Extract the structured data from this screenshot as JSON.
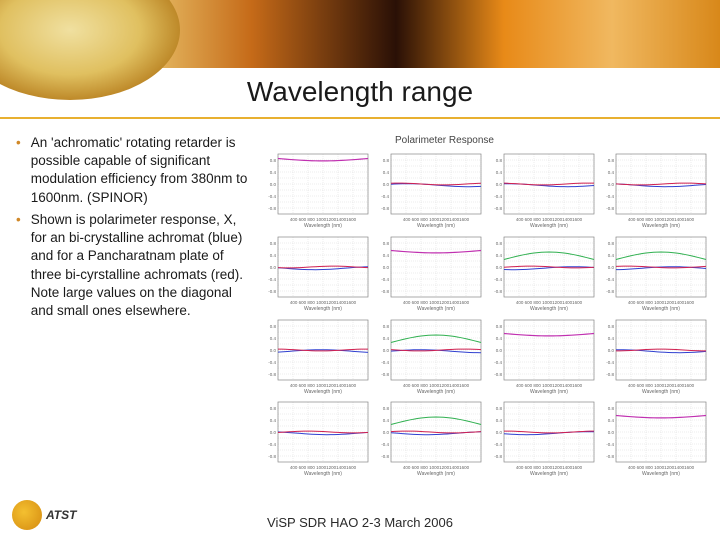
{
  "title": "Wavelength range",
  "bullets": [
    "An 'achromatic' rotating retarder is possible capable of significant modulation efficiency from 380nm to 1600nm. (SPINOR)",
    "Shown is polarimeter response, X, for an bi-crystalline achromat (blue) and for a Pancharatnam plate of three bi-cyrstalline achromats (red). Note large values on the diagonal and small ones elsewhere."
  ],
  "grid_title": "Polarimeter Response",
  "footer": "ViSP SDR HAO 2-3 March 2006",
  "logo_text": "ATST",
  "chart_style": {
    "axis_color": "#888888",
    "grid_color": "#d0d0d0",
    "text_color": "#666666",
    "blue_line": "#3040d0",
    "red_line": "#d02050",
    "magenta_line": "#c030b0",
    "green_line": "#30b050",
    "bg": "#ffffff",
    "xticks": [
      "400",
      "600",
      "800",
      "1000",
      "1200",
      "1400",
      "1600"
    ],
    "xlabel": "Wavelength (nm)",
    "yticks_full": [
      "-0.8",
      "-0.6",
      "-0.4",
      "-0.2",
      "0.0",
      "0.2",
      "0.4",
      "0.6",
      "0.8"
    ],
    "ylim": [
      -1,
      1
    ]
  },
  "charts": [
    {
      "diag": true,
      "mainVal": 0.85
    },
    {
      "diag": false
    },
    {
      "diag": false
    },
    {
      "diag": false
    },
    {
      "diag": false
    },
    {
      "diag": true,
      "mainVal": 0.55
    },
    {
      "diag": false,
      "hasGreen": true
    },
    {
      "diag": false,
      "hasGreen": true
    },
    {
      "diag": false
    },
    {
      "diag": false,
      "hasGreen": true
    },
    {
      "diag": true,
      "mainVal": 0.55
    },
    {
      "diag": false
    },
    {
      "diag": false
    },
    {
      "diag": false,
      "hasGreen": true
    },
    {
      "diag": false
    },
    {
      "diag": true,
      "mainVal": 0.55
    }
  ]
}
